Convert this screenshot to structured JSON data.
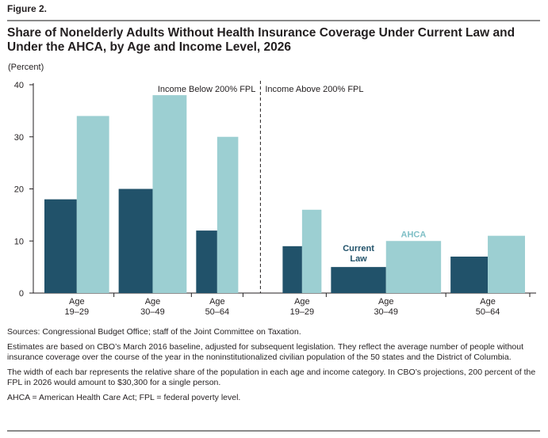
{
  "figure_label": "Figure 2.",
  "title": "Share of Nonelderly Adults Without Health Insurance Coverage Under Current Law and Under the AHCA, by Age and Income Level, 2026",
  "colors": {
    "current_law": "#21526a",
    "ahca": "#9ccfd2",
    "annot_ahca": "#7fbfc6"
  },
  "chart_data": {
    "type": "bar",
    "ylabel": "(Percent)",
    "ylim": [
      0,
      40
    ],
    "yticks": [
      0,
      10,
      20,
      30,
      40
    ],
    "groups": [
      {
        "name": "Income Below 200% FPL",
        "categories": [
          {
            "label1": "Age",
            "label2": "19–29",
            "width_share": 1,
            "current_law": 18,
            "ahca": 34
          },
          {
            "label1": "Age",
            "label2": "30–49",
            "width_share": 1.05,
            "current_law": 20,
            "ahca": 38
          },
          {
            "label1": "Age",
            "label2": "50–64",
            "width_share": 0.65,
            "current_law": 12,
            "ahca": 30
          }
        ]
      },
      {
        "name": "Income Above 200% FPL",
        "categories": [
          {
            "label1": "Age",
            "label2": "19–29",
            "width_share": 0.6,
            "current_law": 9,
            "ahca": 16
          },
          {
            "label1": "Age",
            "label2": "30–49",
            "width_share": 1.7,
            "current_law": 5,
            "ahca": 10
          },
          {
            "label1": "Age",
            "label2": "50–64",
            "width_share": 1.15,
            "current_law": 7,
            "ahca": 11
          }
        ]
      }
    ],
    "series": [
      {
        "name": "Current Law"
      },
      {
        "name": "AHCA"
      }
    ],
    "annotations": {
      "current_law_line1": "Current",
      "current_law_line2": "Law",
      "ahca": "AHCA"
    }
  },
  "notes": {
    "sources": "Sources: Congressional Budget Office; staff of the Joint Committee on Taxation.",
    "estimates": "Estimates are based on CBO’s March 2016 baseline, adjusted for subsequent legislation. They reflect the average number of people without insurance coverage over the course of the year in the noninstitutionalized civilian population of the 50 states and the District of Columbia.",
    "width": "The width of each bar represents the relative share of the population in each age and income category. In CBO’s projections, 200 percent of the FPL in 2026 would amount to $30,300 for a single person.",
    "abbreviations": "AHCA = American Health Care Act; FPL = federal poverty level."
  }
}
